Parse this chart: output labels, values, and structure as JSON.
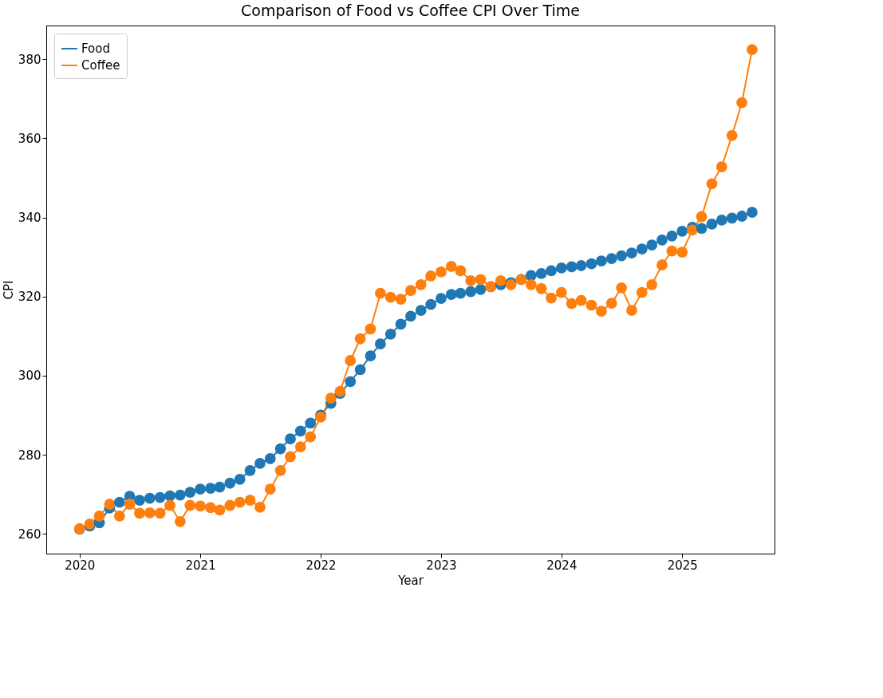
{
  "chart_data": {
    "type": "line",
    "title": "Comparison of Food vs Coffee CPI Over Time",
    "xlabel": "Year",
    "ylabel": "CPI",
    "x": [
      "2020-01",
      "2020-02",
      "2020-03",
      "2020-04",
      "2020-05",
      "2020-06",
      "2020-07",
      "2020-08",
      "2020-09",
      "2020-10",
      "2020-11",
      "2020-12",
      "2021-01",
      "2021-02",
      "2021-03",
      "2021-04",
      "2021-05",
      "2021-06",
      "2021-07",
      "2021-08",
      "2021-09",
      "2021-10",
      "2021-11",
      "2021-12",
      "2022-01",
      "2022-02",
      "2022-03",
      "2022-04",
      "2022-05",
      "2022-06",
      "2022-07",
      "2022-08",
      "2022-09",
      "2022-10",
      "2022-11",
      "2022-12",
      "2023-01",
      "2023-02",
      "2023-03",
      "2023-04",
      "2023-05",
      "2023-06",
      "2023-07",
      "2023-08",
      "2023-09",
      "2023-10",
      "2023-11",
      "2023-12",
      "2024-01",
      "2024-02",
      "2024-03",
      "2024-04",
      "2024-05",
      "2024-06",
      "2024-07",
      "2024-08",
      "2024-09",
      "2024-10",
      "2024-11",
      "2024-12",
      "2025-01",
      "2025-02",
      "2025-03",
      "2025-04",
      "2025-05",
      "2025-06",
      "2025-07",
      "2025-08"
    ],
    "series": [
      {
        "name": "Food",
        "color": "#1f77b4",
        "values": [
          261.2,
          262,
          262.8,
          266.5,
          268,
          269.5,
          268.5,
          269,
          269.2,
          269.6,
          269.8,
          270.5,
          271.3,
          271.5,
          271.8,
          272.8,
          273.8,
          276,
          277.8,
          279,
          281.5,
          284,
          286,
          288,
          290,
          293,
          295.5,
          298.5,
          301.5,
          305,
          308,
          310.5,
          313,
          315,
          316.5,
          318,
          319.5,
          320.5,
          320.8,
          321.2,
          321.8,
          322.5,
          323,
          323.5,
          324.3,
          325.3,
          325.8,
          326.5,
          327.2,
          327.5,
          327.8,
          328.3,
          329,
          329.6,
          330.3,
          331,
          332,
          333,
          334.3,
          335.3,
          336.5,
          337.5,
          337.2,
          338.3,
          339.3,
          339.8,
          340.3,
          341.3
        ]
      },
      {
        "name": "Coffee",
        "color": "#ff7f0e",
        "values": [
          261.3,
          262.5,
          264.5,
          267.5,
          264.5,
          267.5,
          265.2,
          265.3,
          265.2,
          267.2,
          263.1,
          267.2,
          267,
          266.6,
          266,
          267.2,
          268,
          268.5,
          266.7,
          271.3,
          276,
          279.5,
          282,
          284.5,
          289.5,
          294.3,
          296,
          303.8,
          309.3,
          311.8,
          320.8,
          319.8,
          319.3,
          321.5,
          323,
          325.2,
          326.2,
          327.6,
          326.5,
          324,
          324.3,
          322.5,
          324,
          323,
          324.3,
          323,
          322,
          319.6,
          321,
          318.2,
          319,
          317.8,
          316.3,
          318.3,
          322.2,
          316.5,
          321,
          323,
          328,
          331.5,
          331.2,
          336.8,
          340.2,
          348.5,
          352.8,
          360.7,
          369,
          382.4
        ]
      }
    ],
    "xlim": [
      "2019-09-22",
      "2025-10-08"
    ],
    "ylim": [
      255,
      388.5
    ],
    "xticks": [
      {
        "value": "2020-01-01",
        "label": "2020"
      },
      {
        "value": "2021-01-01",
        "label": "2021"
      },
      {
        "value": "2022-01-01",
        "label": "2022"
      },
      {
        "value": "2023-01-01",
        "label": "2023"
      },
      {
        "value": "2024-01-01",
        "label": "2024"
      },
      {
        "value": "2025-01-01",
        "label": "2025"
      }
    ],
    "yticks": [
      260,
      280,
      300,
      320,
      340,
      360,
      380
    ],
    "legend": "top left",
    "marker": "circle",
    "line_style": "solid",
    "grid": false
  }
}
